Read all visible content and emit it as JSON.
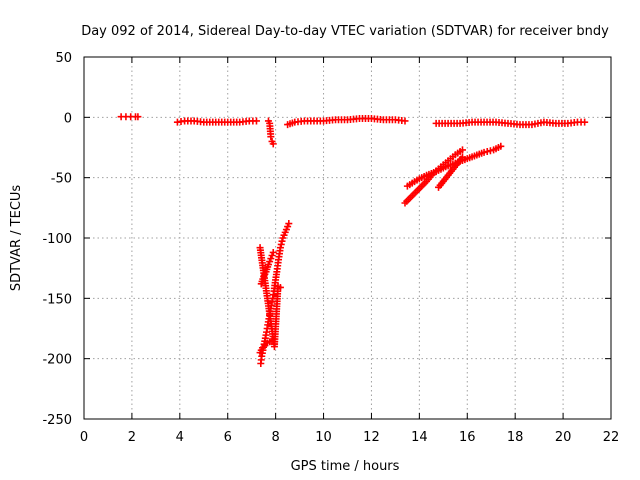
{
  "chart_data": {
    "type": "scatter",
    "title": "Day 092 of 2014, Sidereal Day-to-day VTEC variation (SDTVAR) for receiver bndy",
    "xlabel": "GPS time / hours",
    "ylabel": "SDTVAR / TECUs",
    "xlim": [
      0,
      22
    ],
    "ylim": [
      -250,
      50
    ],
    "xticks": [
      0,
      2,
      4,
      6,
      8,
      10,
      12,
      14,
      16,
      18,
      20,
      22
    ],
    "yticks": [
      -250,
      -200,
      -150,
      -100,
      -50,
      0,
      50
    ],
    "grid": true,
    "marker": "plus",
    "color": "#ff0000",
    "segments": [
      {
        "x": [
          1.55,
          1.75,
          1.95,
          2.15,
          2.25
        ],
        "y": [
          0.5,
          0.5,
          0.5,
          0.5,
          0.5
        ]
      },
      {
        "x": [
          3.9,
          4.2,
          4.6,
          5.0,
          5.5,
          6.0,
          6.5,
          6.9,
          7.2
        ],
        "y": [
          -4,
          -3,
          -3,
          -4,
          -4,
          -4,
          -4,
          -3,
          -3
        ]
      },
      {
        "x": [
          7.7,
          7.75,
          7.8,
          7.85,
          7.9
        ],
        "y": [
          -3,
          -5,
          -16,
          -20,
          -22
        ]
      },
      {
        "x": [
          8.5,
          8.8,
          9.2,
          9.6,
          10.0,
          10.5,
          11.0,
          11.5,
          12.0,
          12.5,
          13.0,
          13.4
        ],
        "y": [
          -6,
          -4,
          -3,
          -3,
          -3,
          -2,
          -2,
          -1,
          -1,
          -2,
          -2,
          -3
        ]
      },
      {
        "x": [
          7.38,
          7.42,
          7.47,
          7.52,
          7.57,
          7.62,
          7.67,
          7.72,
          7.77,
          7.82,
          7.88,
          7.93,
          7.98,
          8.05,
          8.12,
          8.2,
          8.3,
          8.45,
          8.55
        ],
        "y": [
          -204,
          -198,
          -193,
          -188,
          -183,
          -178,
          -172,
          -167,
          -161,
          -156,
          -150,
          -144,
          -137,
          -128,
          -118,
          -108,
          -100,
          -93,
          -88
        ]
      },
      {
        "x": [
          7.35,
          7.45,
          7.55,
          7.65,
          7.75,
          7.85,
          7.95
        ],
        "y": [
          -195,
          -191,
          -189,
          -187,
          -186,
          -185,
          -186
        ]
      },
      {
        "x": [
          7.4,
          7.5,
          7.6,
          7.7,
          7.8,
          7.9
        ],
        "y": [
          -138,
          -132,
          -128,
          -122,
          -117,
          -112
        ]
      },
      {
        "x": [
          7.35,
          7.95,
          8.1,
          8.2
        ],
        "y": [
          -108,
          -190,
          -140,
          -141
        ]
      },
      {
        "x": [
          13.4,
          13.7,
          14.0,
          14.3,
          14.6,
          14.9,
          15.2,
          15.5,
          15.8
        ],
        "y": [
          -71,
          -65,
          -59,
          -53,
          -46,
          -41,
          -36,
          -31,
          -27
        ]
      },
      {
        "x": [
          13.5,
          13.9,
          14.3,
          14.7,
          15.1,
          15.5,
          15.9,
          16.3,
          16.7,
          17.1,
          17.4
        ],
        "y": [
          -57,
          -52,
          -48,
          -45,
          -41,
          -38,
          -35,
          -32,
          -29,
          -27,
          -24
        ]
      },
      {
        "x": [
          14.8,
          15.0,
          15.2,
          15.4,
          15.6,
          15.8
        ],
        "y": [
          -58,
          -53,
          -48,
          -43,
          -38,
          -33
        ]
      },
      {
        "x": [
          14.7,
          15.2,
          15.7,
          16.2,
          16.7,
          17.2,
          17.7,
          18.2,
          18.7,
          19.2,
          19.7,
          20.2,
          20.6,
          20.9
        ],
        "y": [
          -5,
          -5,
          -5,
          -4,
          -4,
          -4,
          -5,
          -6,
          -6,
          -4,
          -5,
          -5,
          -4,
          -4
        ]
      }
    ]
  }
}
